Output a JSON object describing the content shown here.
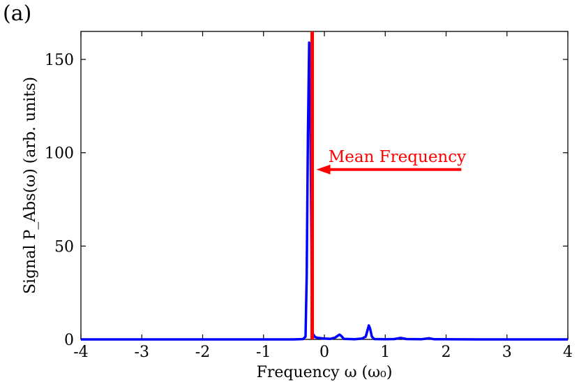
{
  "panel_label": "(a)",
  "chart_data": {
    "type": "line",
    "title": "",
    "xlabel": "Frequency ω (ω₀)",
    "ylabel": "Signal P_Abs(ω) (arb. units)",
    "xlim": [
      -4,
      4
    ],
    "ylim": [
      0,
      165
    ],
    "xticks": [
      "-4",
      "-3",
      "-2",
      "-1",
      "0",
      "1",
      "2",
      "3",
      "4"
    ],
    "xtick_values": [
      -4,
      -3,
      -2,
      -1,
      0,
      1,
      2,
      3,
      4
    ],
    "yticks": [
      "0",
      "50",
      "100",
      "150"
    ],
    "ytick_values": [
      0,
      50,
      100,
      150
    ],
    "grid": false,
    "series": [
      {
        "color": "#0000ff",
        "x": [
          -4,
          -0.5,
          -0.35,
          -0.31,
          -0.29,
          -0.27,
          -0.25,
          -0.23,
          -0.21,
          -0.19,
          -0.15,
          -0.1,
          -0.05,
          0,
          0.1,
          0.18,
          0.22,
          0.25,
          0.28,
          0.32,
          0.5,
          0.62,
          0.68,
          0.71,
          0.73,
          0.75,
          0.78,
          0.82,
          1.0,
          1.15,
          1.25,
          1.35,
          1.6,
          1.72,
          1.8,
          2.5,
          4
        ],
        "y": [
          0,
          0,
          0.2,
          1.5,
          35,
          110,
          159,
          120,
          40,
          3,
          1.2,
          0.8,
          0.6,
          0.5,
          0.3,
          1.0,
          2.0,
          2.6,
          1.8,
          0.3,
          0.1,
          0.5,
          1.5,
          5,
          7.5,
          6,
          1.5,
          0.2,
          0.1,
          0.2,
          0.8,
          0.2,
          0.1,
          0.6,
          0.1,
          0,
          0
        ]
      }
    ],
    "annotations": [
      {
        "kind": "vline",
        "x": -0.2,
        "color": "#ff0000"
      },
      {
        "kind": "arrow",
        "text": "Mean Frequency",
        "x_from": 2.25,
        "x_to": -0.2,
        "y": 91,
        "color": "#ff0000"
      }
    ]
  }
}
